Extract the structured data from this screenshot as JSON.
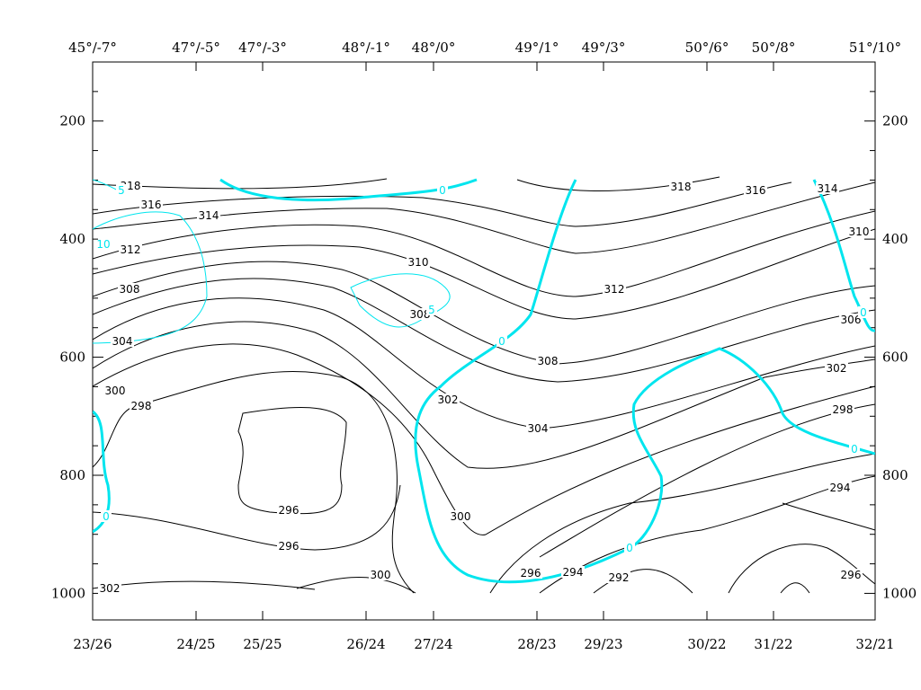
{
  "chart_data": {
    "type": "contour",
    "top_labels": [
      "45°/-7°",
      "47°/-5°",
      "47°/-3°",
      "48°/-1°",
      "48°/0°",
      "49°/1°",
      "49°/3°",
      "50°/6°",
      "50°/8°",
      "51°/10°"
    ],
    "categories": [
      "23/26",
      "24/25",
      "25/25",
      "26/24",
      "27/24",
      "28/23",
      "29/23",
      "30/22",
      "31/22",
      "32/21"
    ],
    "ylim": [
      100,
      1045
    ],
    "yticks": [
      200,
      400,
      600,
      800,
      1000
    ],
    "y_minor_ticks": [
      150,
      250,
      300,
      350,
      450,
      500,
      550,
      650,
      700,
      750,
      850,
      900,
      950
    ],
    "isentrope_levels": [
      292,
      294,
      296,
      298,
      300,
      302,
      304,
      306,
      308,
      310,
      312,
      314,
      316,
      318
    ],
    "isentrope_color": "#000000",
    "wind_levels": [
      0,
      5,
      10
    ],
    "wind_color": "#00e5ee",
    "isentrope_labels": [
      318,
      316,
      314,
      312,
      308,
      304,
      300,
      298,
      296,
      296,
      300,
      302,
      310,
      308,
      302,
      300,
      304,
      308,
      312,
      318,
      316,
      314,
      310,
      306,
      302,
      298,
      294,
      296,
      294,
      292,
      296
    ],
    "wind_labels": [
      0,
      5,
      10,
      5,
      0,
      0,
      0,
      0,
      0
    ]
  }
}
